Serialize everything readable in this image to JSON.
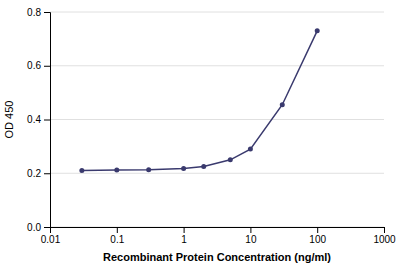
{
  "chart_data": {
    "type": "line",
    "x": [
      0.03,
      0.1,
      0.3,
      1.0,
      2.0,
      5.0,
      10.0,
      30.0,
      100.0
    ],
    "values": [
      0.21,
      0.212,
      0.213,
      0.218,
      0.225,
      0.25,
      0.29,
      0.455,
      0.73
    ],
    "color": "#3a3a6e",
    "marker": "circle",
    "xlabel": "Recombinant Protein Concentration (ng/ml)",
    "ylabel": "OD 450",
    "log": "x",
    "xlim": [
      0.01,
      1000
    ],
    "ylim": [
      0,
      0.8
    ],
    "xticks": [
      0.01,
      0.1,
      1,
      10,
      100,
      1000
    ],
    "yticks": [
      {
        "value": 0,
        "label": "0.0"
      },
      0.2,
      0.4,
      0.6,
      0.8
    ],
    "grid": true
  }
}
